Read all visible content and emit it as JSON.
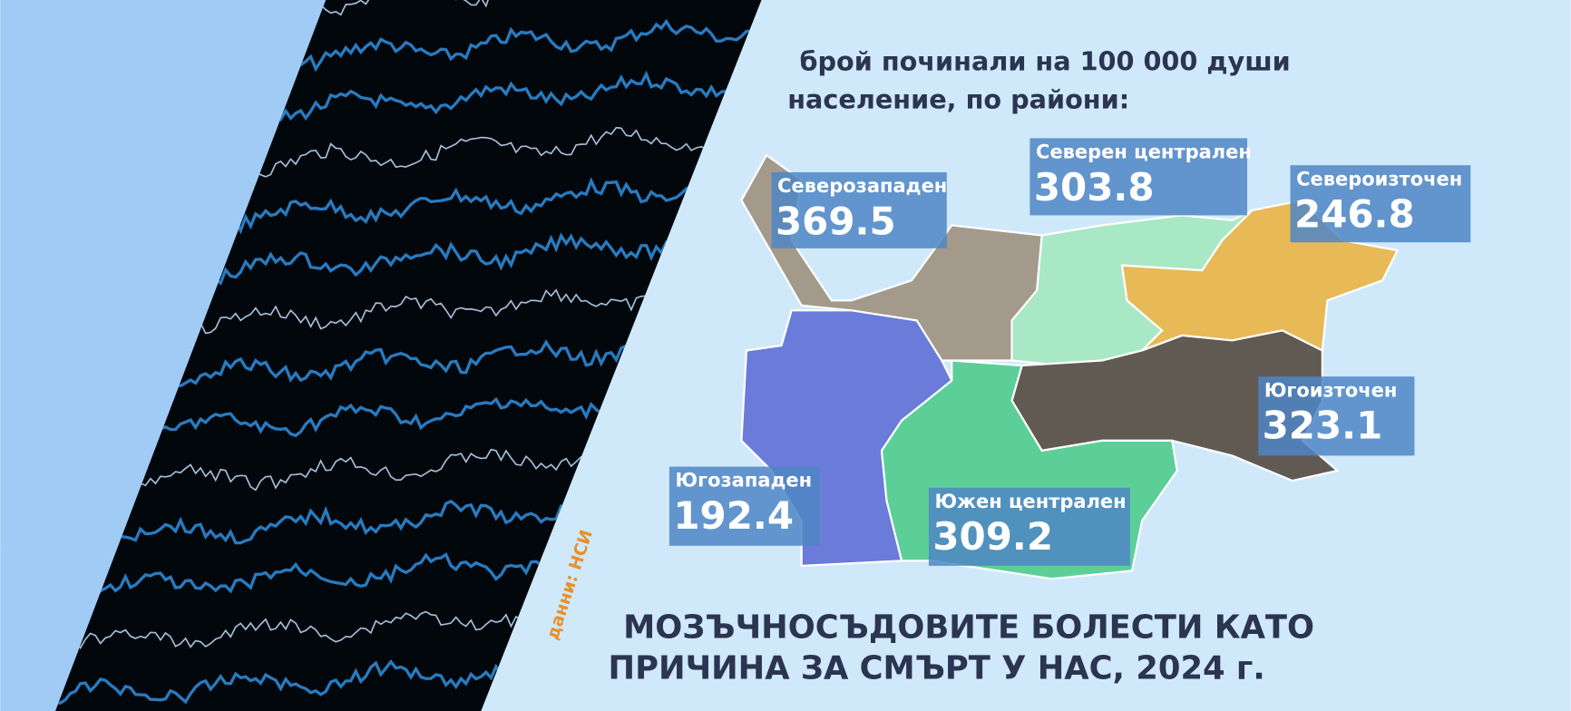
{
  "header": {
    "subtitle_lines": [
      "брой починали на 100 000 души",
      "население, по райони:"
    ],
    "title_lines": [
      "МОЗЪЧНОСЪДОВИТЕ БОЛЕСТИ КАТО",
      "ПРИЧИНА ЗА СМЪРТ У НАС, 2024 г."
    ]
  },
  "source": "данни: НСИ",
  "regions": [
    {
      "name": "Северозападен",
      "value": 369.5,
      "color": "#a39a8c"
    },
    {
      "name": "Северен централен",
      "value": 303.8,
      "color": "#a8e8c4"
    },
    {
      "name": "Североизточен",
      "value": 246.8,
      "color": "#e8b957"
    },
    {
      "name": "Югоизточен",
      "value": 323.1,
      "color": "#615a53"
    },
    {
      "name": "Югозападен",
      "value": 192.4,
      "color": "#6a7bd9"
    },
    {
      "name": "Южен централен",
      "value": 309.2,
      "color": "#5ccf98"
    }
  ]
}
